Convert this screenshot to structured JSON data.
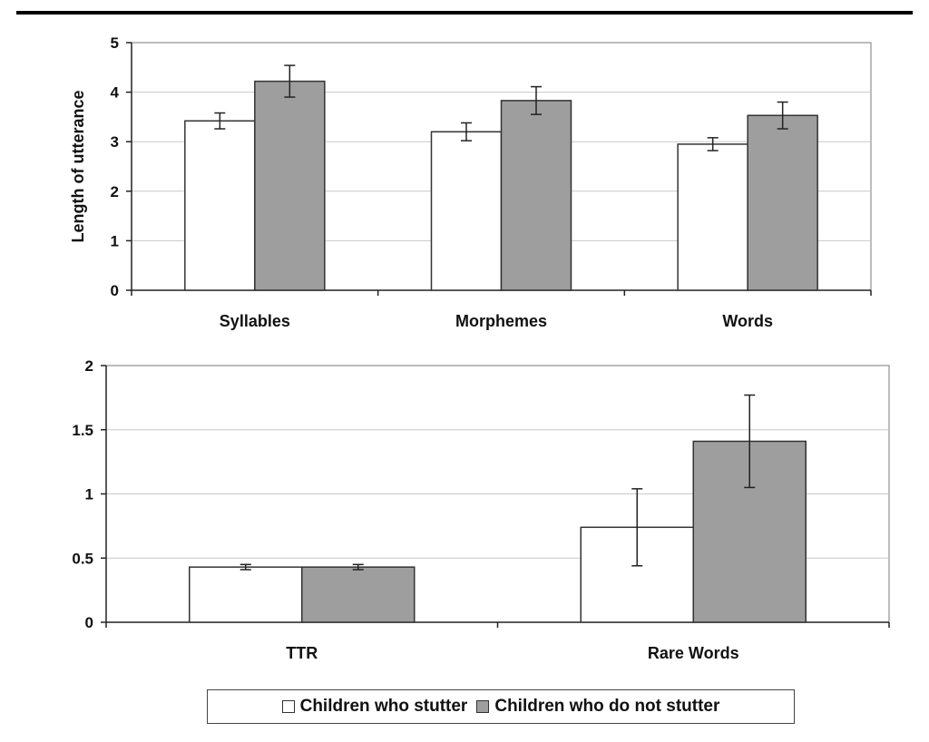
{
  "chart_data": [
    {
      "type": "bar",
      "title": "",
      "xlabel": "",
      "ylabel": "Length of utterance",
      "ylim": [
        0,
        5
      ],
      "yticks": [
        "0",
        "1",
        "2",
        "3",
        "4",
        "5"
      ],
      "categories": [
        "Syllables",
        "Morphemes",
        "Words"
      ],
      "grid": true,
      "series": [
        {
          "name": "Children who stutter",
          "color": "#ffffff",
          "values": [
            3.42,
            3.2,
            2.95
          ],
          "errors": [
            0.16,
            0.18,
            0.13
          ]
        },
        {
          "name": "Children who do not stutter",
          "color": "#9e9e9e",
          "values": [
            4.22,
            3.83,
            3.53
          ],
          "errors": [
            0.32,
            0.28,
            0.27
          ]
        }
      ]
    },
    {
      "type": "bar",
      "title": "",
      "xlabel": "",
      "ylabel": "",
      "ylim": [
        0,
        2
      ],
      "yticks": [
        "0",
        "0.5",
        "1",
        "1.5",
        "2"
      ],
      "categories": [
        "TTR",
        "Rare Words"
      ],
      "grid": true,
      "series": [
        {
          "name": "Children who stutter",
          "color": "#ffffff",
          "values": [
            0.43,
            0.74
          ],
          "errors": [
            0.02,
            0.3
          ]
        },
        {
          "name": "Children who do not stutter",
          "color": "#9e9e9e",
          "values": [
            0.43,
            1.41
          ],
          "errors": [
            0.02,
            0.36
          ]
        }
      ]
    }
  ],
  "legend": {
    "position": "bottom",
    "items": [
      "Children who stutter",
      "Children who do not stutter"
    ]
  }
}
